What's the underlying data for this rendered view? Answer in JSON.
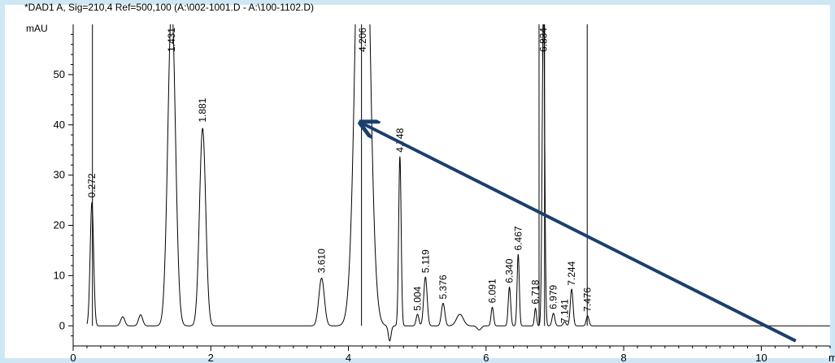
{
  "chart_data": {
    "type": "line",
    "title": "*DAD1 A, Sig=210,4 Ref=500,100 (A:\\002-1001.D - A:\\100-1102.D)",
    "ylabel": "mAU",
    "xlabel": "m",
    "xlim": [
      0,
      11
    ],
    "ylim": [
      -4,
      60
    ],
    "x_ticks": [
      0,
      2,
      4,
      6,
      8,
      10
    ],
    "y_ticks": [
      0,
      10,
      20,
      30,
      40,
      50
    ],
    "grid": false,
    "series": [
      {
        "color": "#000000",
        "peaks": [
          {
            "x": 0.272,
            "y": 24.5,
            "w": 0.025
          },
          {
            "x": 0.72,
            "y": 1.8,
            "w": 0.03
          },
          {
            "x": 0.98,
            "y": 2.2,
            "w": 0.03
          },
          {
            "x": 1.431,
            "y": 64.0,
            "w": 0.055
          },
          {
            "x": 1.881,
            "y": 39.3,
            "w": 0.045
          },
          {
            "x": 3.61,
            "y": 9.5,
            "w": 0.04
          },
          {
            "x": 4.206,
            "y": 120.0,
            "w": 0.09
          },
          {
            "x": 4.748,
            "y": 33.7,
            "w": 0.018
          },
          {
            "x": 5.004,
            "y": 2.3,
            "w": 0.02
          },
          {
            "x": 5.119,
            "y": 9.7,
            "w": 0.025
          },
          {
            "x": 5.376,
            "y": 4.5,
            "w": 0.025
          },
          {
            "x": 5.62,
            "y": 2.3,
            "w": 0.05
          },
          {
            "x": 6.091,
            "y": 3.7,
            "w": 0.018
          },
          {
            "x": 6.34,
            "y": 7.7,
            "w": 0.018
          },
          {
            "x": 6.467,
            "y": 14.2,
            "w": 0.016
          },
          {
            "x": 6.718,
            "y": 3.5,
            "w": 0.015
          },
          {
            "x": 6.834,
            "y": 64.0,
            "w": 0.018
          },
          {
            "x": 6.979,
            "y": 2.5,
            "w": 0.02
          },
          {
            "x": 7.141,
            "y": 0.8,
            "w": 0.02
          },
          {
            "x": 7.244,
            "y": 7.3,
            "w": 0.02
          },
          {
            "x": 7.476,
            "y": 2.0,
            "w": 0.02
          }
        ],
        "dips": [
          {
            "x": 4.6,
            "y": -3.0,
            "w": 0.02
          },
          {
            "x": 5.9,
            "y": -0.8,
            "w": 0.03
          }
        ]
      }
    ],
    "peak_labels": [
      {
        "text": "0.272",
        "x": 0.272,
        "y": 25.5
      },
      {
        "text": "1.431",
        "x": 1.431,
        "y": 54.5
      },
      {
        "text": "1.881",
        "x": 1.881,
        "y": 40.5
      },
      {
        "text": "3.610",
        "x": 3.61,
        "y": 10.5
      },
      {
        "text": "4.206",
        "x": 4.206,
        "y": 54.5
      },
      {
        "text": "4.748",
        "x": 4.748,
        "y": 34.5
      },
      {
        "text": "5.004",
        "x": 5.004,
        "y": 3.0
      },
      {
        "text": "5.119",
        "x": 5.119,
        "y": 10.5
      },
      {
        "text": "5.376",
        "x": 5.376,
        "y": 5.3
      },
      {
        "text": "6.091",
        "x": 6.091,
        "y": 4.5
      },
      {
        "text": "6.340",
        "x": 6.34,
        "y": 8.5
      },
      {
        "text": "6.467",
        "x": 6.467,
        "y": 15.0
      },
      {
        "text": "6.718",
        "x": 6.718,
        "y": 4.3
      },
      {
        "text": "6.834",
        "x": 6.834,
        "y": 54.5
      },
      {
        "text": "6.979",
        "x": 6.979,
        "y": 3.3
      },
      {
        "text": "7.141",
        "x": 7.141,
        "y": 0.5
      },
      {
        "text": "7.244",
        "x": 7.244,
        "y": 8.0
      },
      {
        "text": "7.476",
        "x": 7.476,
        "y": 2.8
      }
    ],
    "integration_markers": [
      0.28,
      4.19,
      6.77,
      6.85,
      7.47
    ],
    "annotation_arrow": {
      "from": [
        10.5,
        -3.0
      ],
      "to": [
        4.2,
        40.3
      ],
      "color": "#1b3f6d"
    }
  }
}
